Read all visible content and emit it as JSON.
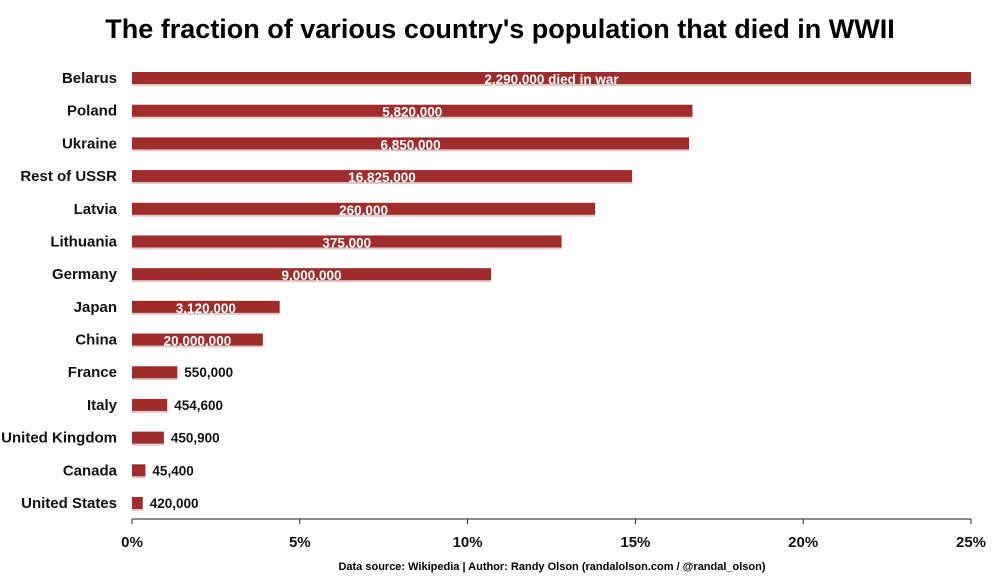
{
  "chart_data": {
    "type": "bar",
    "orientation": "horizontal",
    "title": "The fraction of various country's population that died in WWII",
    "xlabel": "",
    "ylabel": "",
    "xlim": [
      0,
      25
    ],
    "x_ticks": [
      "0%",
      "5%",
      "10%",
      "15%",
      "20%",
      "25%"
    ],
    "x_tick_values": [
      0,
      5,
      10,
      15,
      20,
      25
    ],
    "grid": false,
    "legend": "none",
    "bar_color": "#a02c2c",
    "categories": [
      "Belarus",
      "Poland",
      "Ukraine",
      "Rest of USSR",
      "Latvia",
      "Lithuania",
      "Germany",
      "Japan",
      "China",
      "France",
      "Italy",
      "United Kingdom",
      "Canada",
      "United States"
    ],
    "values": [
      25.0,
      16.7,
      16.6,
      14.9,
      13.8,
      12.8,
      10.7,
      4.4,
      3.9,
      1.35,
      1.05,
      0.95,
      0.4,
      0.32
    ],
    "data_labels": [
      "2,290,000 died in war",
      "5,820,000",
      "6,850,000",
      "16,825,000",
      "260,000",
      "375,000",
      "9,000,000",
      "3,120,000",
      "20,000,000",
      "550,000",
      "454,600",
      "450,900",
      "45,400",
      "420,000"
    ],
    "label_inside": [
      true,
      true,
      true,
      true,
      true,
      true,
      true,
      true,
      true,
      false,
      false,
      false,
      false,
      false
    ]
  },
  "footer": {
    "source": "Data source: Wikipedia | Author: Randy Olson (randalolson.com / @randal_olson)"
  }
}
